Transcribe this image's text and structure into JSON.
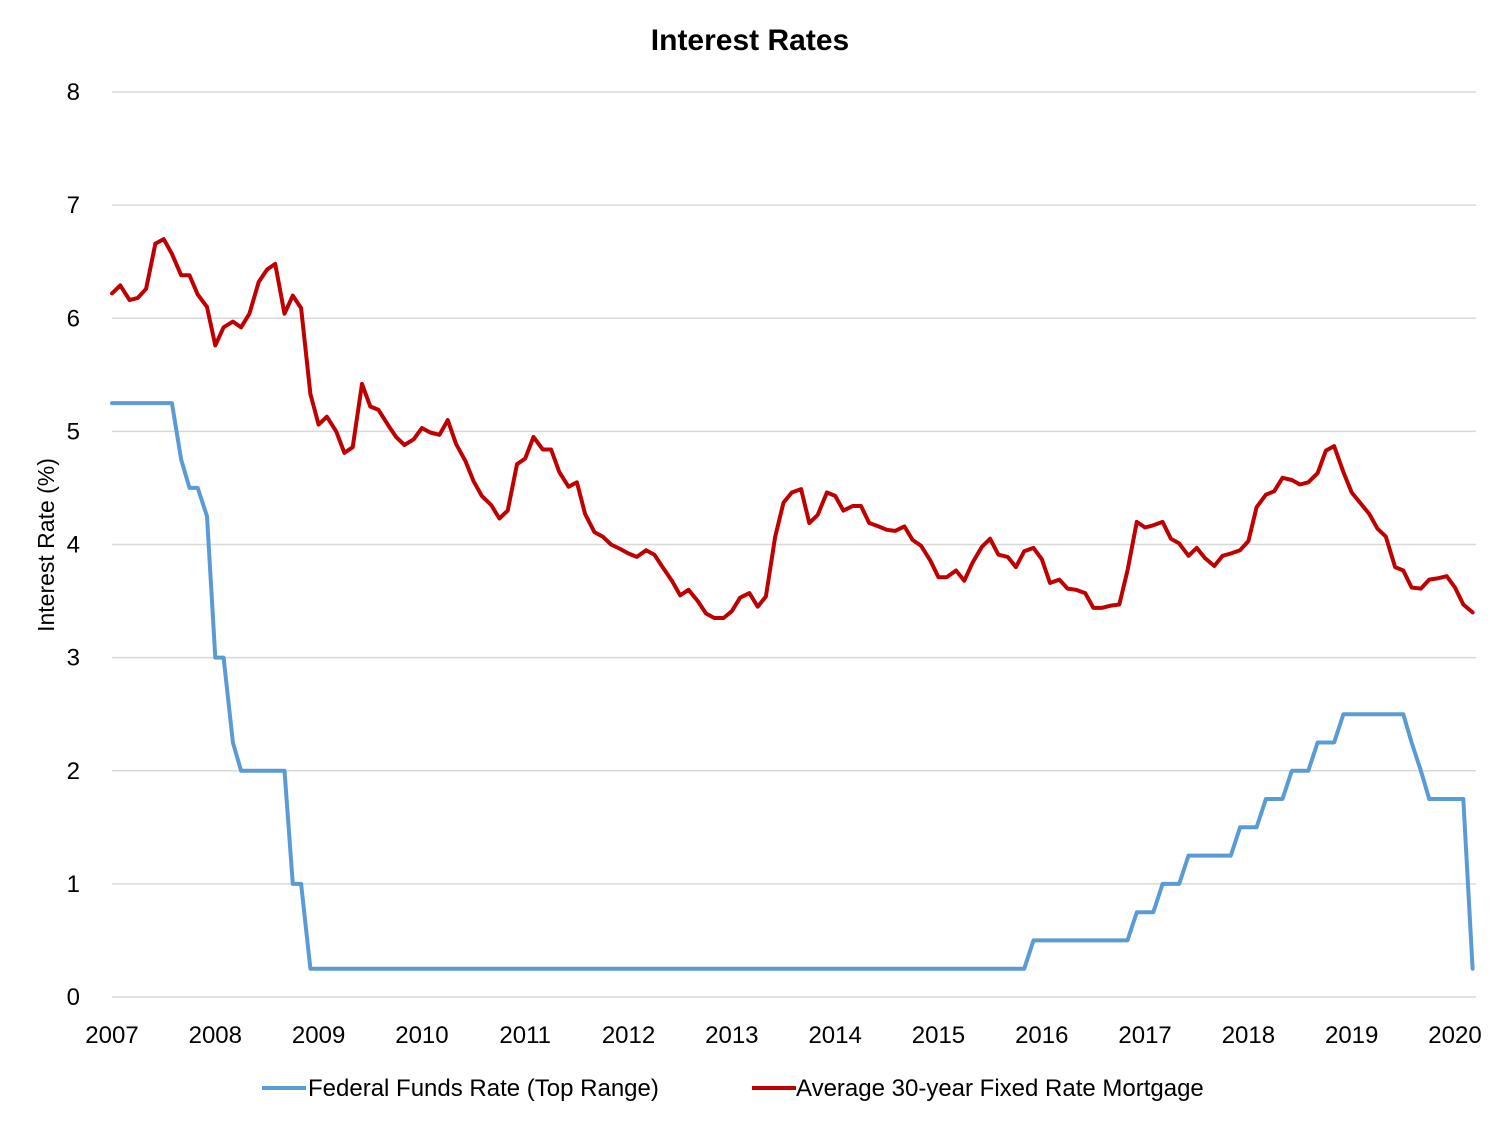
{
  "chart_data": {
    "type": "line",
    "title": "Interest Rates",
    "xlabel": "",
    "ylabel": "Interest Rate (%)",
    "xlim": [
      2007.0,
      2020.25
    ],
    "ylim": [
      0,
      8
    ],
    "x_ticks": [
      "2007",
      "2008",
      "2009",
      "2010",
      "2011",
      "2012",
      "2013",
      "2014",
      "2015",
      "2016",
      "2017",
      "2018",
      "2019",
      "2020"
    ],
    "y_ticks": [
      "0",
      "1",
      "2",
      "3",
      "4",
      "5",
      "6",
      "7",
      "8"
    ],
    "grid": true,
    "legend_position": "bottom",
    "series": [
      {
        "name": "Federal Funds Rate (Top Range)",
        "color": "#5b9bd5",
        "points": [
          [
            2007.0,
            5.25
          ],
          [
            2007.58,
            5.25
          ],
          [
            2007.67,
            4.75
          ],
          [
            2007.75,
            4.5
          ],
          [
            2007.83,
            4.5
          ],
          [
            2007.92,
            4.25
          ],
          [
            2008.0,
            3.0
          ],
          [
            2008.08,
            3.0
          ],
          [
            2008.17,
            2.25
          ],
          [
            2008.25,
            2.0
          ],
          [
            2008.33,
            2.0
          ],
          [
            2008.42,
            2.0
          ],
          [
            2008.5,
            2.0
          ],
          [
            2008.58,
            2.0
          ],
          [
            2008.67,
            2.0
          ],
          [
            2008.75,
            1.0
          ],
          [
            2008.83,
            1.0
          ],
          [
            2008.92,
            0.25
          ],
          [
            2015.83,
            0.25
          ],
          [
            2015.92,
            0.5
          ],
          [
            2016.83,
            0.5
          ],
          [
            2016.92,
            0.75
          ],
          [
            2017.08,
            0.75
          ],
          [
            2017.17,
            1.0
          ],
          [
            2017.33,
            1.0
          ],
          [
            2017.42,
            1.25
          ],
          [
            2017.83,
            1.25
          ],
          [
            2017.92,
            1.5
          ],
          [
            2018.08,
            1.5
          ],
          [
            2018.17,
            1.75
          ],
          [
            2018.33,
            1.75
          ],
          [
            2018.42,
            2.0
          ],
          [
            2018.58,
            2.0
          ],
          [
            2018.67,
            2.25
          ],
          [
            2018.83,
            2.25
          ],
          [
            2018.92,
            2.5
          ],
          [
            2019.5,
            2.5
          ],
          [
            2019.58,
            2.25
          ],
          [
            2019.67,
            2.0
          ],
          [
            2019.75,
            1.75
          ],
          [
            2020.08,
            1.75
          ],
          [
            2020.17,
            0.25
          ]
        ]
      },
      {
        "name": "Average 30-year Fixed Rate Mortgage",
        "color": "#c00000",
        "points": [
          [
            2007.0,
            6.22
          ],
          [
            2007.08,
            6.29
          ],
          [
            2007.17,
            6.16
          ],
          [
            2007.25,
            6.18
          ],
          [
            2007.33,
            6.26
          ],
          [
            2007.42,
            6.66
          ],
          [
            2007.5,
            6.7
          ],
          [
            2007.58,
            6.57
          ],
          [
            2007.67,
            6.38
          ],
          [
            2007.75,
            6.38
          ],
          [
            2007.83,
            6.21
          ],
          [
            2007.92,
            6.1
          ],
          [
            2008.0,
            5.76
          ],
          [
            2008.08,
            5.92
          ],
          [
            2008.17,
            5.97
          ],
          [
            2008.25,
            5.92
          ],
          [
            2008.33,
            6.04
          ],
          [
            2008.42,
            6.32
          ],
          [
            2008.5,
            6.43
          ],
          [
            2008.58,
            6.48
          ],
          [
            2008.67,
            6.04
          ],
          [
            2008.75,
            6.2
          ],
          [
            2008.83,
            6.09
          ],
          [
            2008.92,
            5.33
          ],
          [
            2009.0,
            5.06
          ],
          [
            2009.08,
            5.13
          ],
          [
            2009.17,
            5.0
          ],
          [
            2009.25,
            4.81
          ],
          [
            2009.33,
            4.86
          ],
          [
            2009.42,
            5.42
          ],
          [
            2009.5,
            5.22
          ],
          [
            2009.58,
            5.19
          ],
          [
            2009.67,
            5.06
          ],
          [
            2009.75,
            4.95
          ],
          [
            2009.83,
            4.88
          ],
          [
            2009.92,
            4.93
          ],
          [
            2010.0,
            5.03
          ],
          [
            2010.08,
            4.99
          ],
          [
            2010.17,
            4.97
          ],
          [
            2010.25,
            5.1
          ],
          [
            2010.33,
            4.89
          ],
          [
            2010.42,
            4.74
          ],
          [
            2010.5,
            4.56
          ],
          [
            2010.58,
            4.43
          ],
          [
            2010.67,
            4.35
          ],
          [
            2010.75,
            4.23
          ],
          [
            2010.83,
            4.3
          ],
          [
            2010.92,
            4.71
          ],
          [
            2011.0,
            4.76
          ],
          [
            2011.08,
            4.95
          ],
          [
            2011.17,
            4.84
          ],
          [
            2011.25,
            4.84
          ],
          [
            2011.33,
            4.64
          ],
          [
            2011.42,
            4.51
          ],
          [
            2011.5,
            4.55
          ],
          [
            2011.58,
            4.27
          ],
          [
            2011.67,
            4.11
          ],
          [
            2011.75,
            4.07
          ],
          [
            2011.83,
            4.0
          ],
          [
            2011.92,
            3.96
          ],
          [
            2012.0,
            3.92
          ],
          [
            2012.08,
            3.89
          ],
          [
            2012.17,
            3.95
          ],
          [
            2012.25,
            3.91
          ],
          [
            2012.33,
            3.8
          ],
          [
            2012.42,
            3.68
          ],
          [
            2012.5,
            3.55
          ],
          [
            2012.58,
            3.6
          ],
          [
            2012.67,
            3.5
          ],
          [
            2012.75,
            3.39
          ],
          [
            2012.83,
            3.35
          ],
          [
            2012.92,
            3.35
          ],
          [
            2013.0,
            3.41
          ],
          [
            2013.08,
            3.53
          ],
          [
            2013.17,
            3.57
          ],
          [
            2013.25,
            3.45
          ],
          [
            2013.33,
            3.54
          ],
          [
            2013.42,
            4.07
          ],
          [
            2013.5,
            4.37
          ],
          [
            2013.58,
            4.46
          ],
          [
            2013.67,
            4.49
          ],
          [
            2013.75,
            4.19
          ],
          [
            2013.83,
            4.26
          ],
          [
            2013.92,
            4.46
          ],
          [
            2014.0,
            4.43
          ],
          [
            2014.08,
            4.3
          ],
          [
            2014.17,
            4.34
          ],
          [
            2014.25,
            4.34
          ],
          [
            2014.33,
            4.19
          ],
          [
            2014.42,
            4.16
          ],
          [
            2014.5,
            4.13
          ],
          [
            2014.58,
            4.12
          ],
          [
            2014.67,
            4.16
          ],
          [
            2014.75,
            4.04
          ],
          [
            2014.83,
            3.99
          ],
          [
            2014.92,
            3.86
          ],
          [
            2015.0,
            3.71
          ],
          [
            2015.08,
            3.71
          ],
          [
            2015.17,
            3.77
          ],
          [
            2015.25,
            3.68
          ],
          [
            2015.33,
            3.84
          ],
          [
            2015.42,
            3.98
          ],
          [
            2015.5,
            4.05
          ],
          [
            2015.58,
            3.91
          ],
          [
            2015.67,
            3.89
          ],
          [
            2015.75,
            3.8
          ],
          [
            2015.83,
            3.94
          ],
          [
            2015.92,
            3.97
          ],
          [
            2016.0,
            3.87
          ],
          [
            2016.08,
            3.66
          ],
          [
            2016.17,
            3.69
          ],
          [
            2016.25,
            3.61
          ],
          [
            2016.33,
            3.6
          ],
          [
            2016.42,
            3.57
          ],
          [
            2016.5,
            3.44
          ],
          [
            2016.58,
            3.44
          ],
          [
            2016.67,
            3.46
          ],
          [
            2016.75,
            3.47
          ],
          [
            2016.83,
            3.77
          ],
          [
            2016.92,
            4.2
          ],
          [
            2017.0,
            4.15
          ],
          [
            2017.08,
            4.17
          ],
          [
            2017.17,
            4.2
          ],
          [
            2017.25,
            4.05
          ],
          [
            2017.33,
            4.01
          ],
          [
            2017.42,
            3.9
          ],
          [
            2017.5,
            3.97
          ],
          [
            2017.58,
            3.88
          ],
          [
            2017.67,
            3.81
          ],
          [
            2017.75,
            3.9
          ],
          [
            2017.83,
            3.92
          ],
          [
            2017.92,
            3.95
          ],
          [
            2018.0,
            4.03
          ],
          [
            2018.08,
            4.33
          ],
          [
            2018.17,
            4.44
          ],
          [
            2018.25,
            4.47
          ],
          [
            2018.33,
            4.59
          ],
          [
            2018.42,
            4.57
          ],
          [
            2018.5,
            4.53
          ],
          [
            2018.58,
            4.55
          ],
          [
            2018.67,
            4.63
          ],
          [
            2018.75,
            4.83
          ],
          [
            2018.83,
            4.87
          ],
          [
            2018.92,
            4.64
          ],
          [
            2019.0,
            4.46
          ],
          [
            2019.08,
            4.37
          ],
          [
            2019.17,
            4.27
          ],
          [
            2019.25,
            4.14
          ],
          [
            2019.33,
            4.07
          ],
          [
            2019.42,
            3.8
          ],
          [
            2019.5,
            3.77
          ],
          [
            2019.58,
            3.62
          ],
          [
            2019.67,
            3.61
          ],
          [
            2019.75,
            3.69
          ],
          [
            2019.83,
            3.7
          ],
          [
            2019.92,
            3.72
          ],
          [
            2020.0,
            3.62
          ],
          [
            2020.08,
            3.47
          ],
          [
            2020.17,
            3.4
          ]
        ]
      }
    ]
  }
}
